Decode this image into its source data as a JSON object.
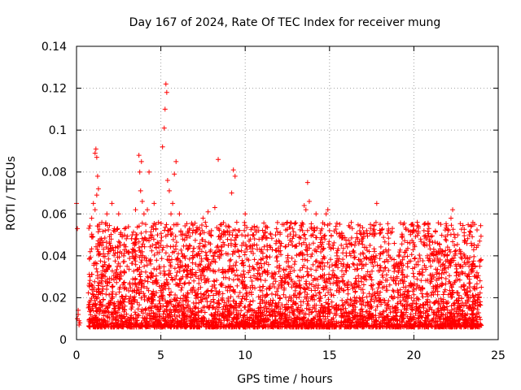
{
  "chart_data": {
    "type": "scatter",
    "title": "Day 167 of 2024, Rate Of TEC Index for receiver mung",
    "xlabel": "GPS time / hours",
    "ylabel": "ROTI / TECUs",
    "xlim": [
      0,
      25
    ],
    "ylim": [
      0,
      0.14
    ],
    "x_ticks": [
      0,
      5,
      10,
      15,
      20,
      25
    ],
    "x_tick_labels": [
      "0",
      "5",
      "10",
      "15",
      "20",
      "25"
    ],
    "y_ticks": [
      0,
      0.02,
      0.04,
      0.06,
      0.08,
      0.1,
      0.12,
      0.14
    ],
    "y_tick_labels": [
      "0",
      "0.02",
      "0.04",
      "0.06",
      "0.08",
      "0.1",
      "0.12",
      "0.14"
    ],
    "grid": true,
    "marker": "plus",
    "color": "#ff0000",
    "series": [
      {
        "x": [
          0.0,
          0.05,
          0.1,
          0.15,
          0.2,
          0.1,
          0.05,
          0.15,
          0.8,
          0.9,
          1.0,
          1.1,
          1.15,
          1.2,
          1.25,
          1.3,
          1.2,
          1.1,
          1.35,
          1.4,
          1.5,
          1.6,
          1.7,
          1.8,
          2.0,
          2.1,
          2.2,
          2.3,
          2.5,
          2.6,
          2.8,
          3.0,
          3.1,
          3.3,
          3.5,
          3.7,
          3.75,
          3.8,
          3.85,
          3.9,
          4.0,
          4.1,
          4.2,
          4.3,
          4.4,
          4.5,
          4.6,
          4.7,
          4.8,
          5.0,
          5.1,
          5.2,
          5.25,
          5.3,
          5.35,
          5.4,
          5.5,
          5.6,
          5.7,
          5.8,
          5.9,
          6.0,
          6.1,
          6.2,
          6.3,
          6.4,
          6.5,
          6.7,
          6.9,
          7.0,
          7.2,
          7.5,
          7.8,
          8.0,
          8.2,
          8.4,
          8.5,
          8.6,
          8.8,
          9.0,
          9.2,
          9.3,
          9.4,
          9.5,
          9.6,
          9.8,
          10.0,
          10.3,
          10.5,
          10.8,
          11.0,
          11.3,
          11.5,
          11.8,
          12.0,
          12.2,
          12.5,
          12.8,
          13.0,
          13.2,
          13.4,
          13.5,
          13.6,
          13.7,
          13.8,
          14.0,
          14.2,
          14.5,
          14.7,
          14.8,
          14.9,
          15.0,
          15.2,
          15.5,
          15.8,
          16.0,
          16.2,
          16.5,
          16.8,
          17.0,
          17.2,
          17.4,
          17.6,
          17.8,
          18.0,
          18.2,
          18.5,
          18.8,
          19.0,
          19.2,
          19.4,
          19.6,
          19.8,
          20.0,
          20.2,
          20.4,
          20.6,
          20.8,
          21.0,
          21.2,
          21.4,
          21.6,
          21.8,
          22.0,
          22.2,
          22.3,
          22.4,
          22.6,
          22.8,
          23.0,
          23.2,
          23.4,
          23.6,
          23.8,
          23.9,
          24.0
        ],
        "y": [
          0.065,
          0.053,
          0.012,
          0.009,
          0.008,
          0.014,
          0.01,
          0.007,
          0.03,
          0.058,
          0.065,
          0.089,
          0.091,
          0.087,
          0.078,
          0.072,
          0.069,
          0.062,
          0.055,
          0.048,
          0.045,
          0.041,
          0.052,
          0.06,
          0.045,
          0.065,
          0.052,
          0.044,
          0.06,
          0.045,
          0.04,
          0.035,
          0.042,
          0.05,
          0.062,
          0.088,
          0.08,
          0.071,
          0.085,
          0.066,
          0.06,
          0.055,
          0.062,
          0.08,
          0.05,
          0.045,
          0.065,
          0.055,
          0.05,
          0.045,
          0.092,
          0.101,
          0.11,
          0.122,
          0.118,
          0.076,
          0.071,
          0.06,
          0.065,
          0.079,
          0.085,
          0.055,
          0.06,
          0.05,
          0.048,
          0.04,
          0.035,
          0.045,
          0.042,
          0.04,
          0.035,
          0.058,
          0.061,
          0.052,
          0.063,
          0.086,
          0.048,
          0.055,
          0.05,
          0.045,
          0.07,
          0.081,
          0.078,
          0.056,
          0.052,
          0.045,
          0.06,
          0.048,
          0.05,
          0.052,
          0.048,
          0.045,
          0.044,
          0.05,
          0.042,
          0.055,
          0.056,
          0.045,
          0.05,
          0.046,
          0.052,
          0.064,
          0.062,
          0.075,
          0.066,
          0.05,
          0.06,
          0.048,
          0.055,
          0.06,
          0.062,
          0.052,
          0.045,
          0.028,
          0.035,
          0.04,
          0.046,
          0.045,
          0.038,
          0.049,
          0.052,
          0.045,
          0.035,
          0.065,
          0.055,
          0.042,
          0.052,
          0.035,
          0.03,
          0.028,
          0.025,
          0.023,
          0.026,
          0.03,
          0.056,
          0.048,
          0.052,
          0.04,
          0.035,
          0.042,
          0.046,
          0.055,
          0.04,
          0.05,
          0.058,
          0.062,
          0.045,
          0.05,
          0.035,
          0.04,
          0.03,
          0.046,
          0.055,
          0.045,
          0.047,
          0.025
        ]
      }
    ]
  }
}
